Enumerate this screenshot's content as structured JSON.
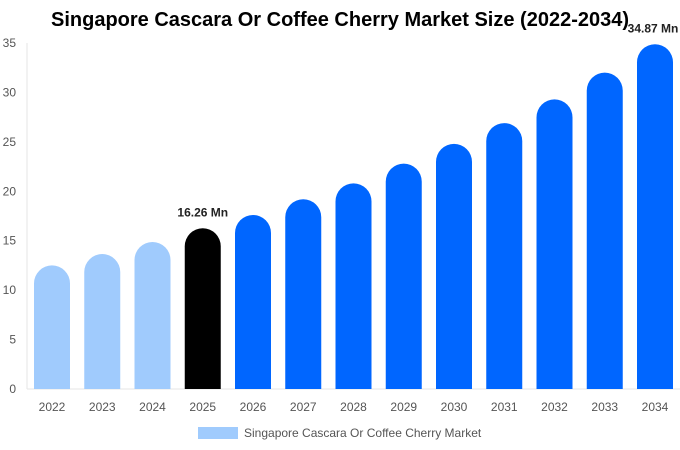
{
  "chart_data": {
    "type": "bar",
    "title": "Singapore Cascara Or Coffee Cherry Market Size (2022-2034)",
    "categories": [
      "2022",
      "2023",
      "2024",
      "2025",
      "2026",
      "2027",
      "2028",
      "2029",
      "2030",
      "2031",
      "2032",
      "2033",
      "2034"
    ],
    "series": [
      {
        "name": "Singapore Cascara Or Coffee Cherry Market",
        "values": [
          12.5,
          13.65,
          14.87,
          16.26,
          17.6,
          19.2,
          20.8,
          22.8,
          24.8,
          26.9,
          29.3,
          32.0,
          34.87
        ]
      }
    ],
    "data_labels": {
      "2025": "16.26 Mn",
      "2034": "34.87 Mn"
    },
    "ylim": [
      0,
      35
    ],
    "yticks": [
      0,
      5,
      10,
      15,
      20,
      25,
      30,
      35
    ],
    "grid": false,
    "legend": "bottom",
    "colors": {
      "historical": "#a0cbfd",
      "base_year": "#000000",
      "forecast": "#0066ff"
    }
  }
}
